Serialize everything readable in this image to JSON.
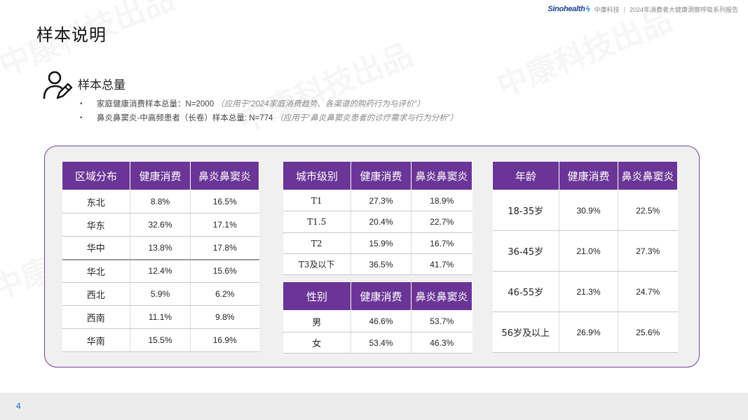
{
  "page": {
    "title": "样本说明",
    "number": "4"
  },
  "brand": {
    "logo": "Sinohealth",
    "company": "中康科技",
    "report": "2024年消费者大健康洞察呼吸系列报告"
  },
  "watermark": "中康科技出品",
  "sample": {
    "heading": "样本总量",
    "items": [
      {
        "text": "家庭健康消费样本总量：N=2000",
        "note": "（应用于“2024家庭消费趋势、各渠道的购药行为与评价”）"
      },
      {
        "text": "鼻炎鼻窦炎-中高频患者（长卷）样本总量: N=774",
        "note": "（应用于“鼻炎鼻窦炎患者的诊疗需求与行为分析”）"
      }
    ]
  },
  "tables": {
    "region": {
      "headers": [
        "区域分布",
        "健康消费",
        "鼻炎鼻窦炎"
      ],
      "rows": [
        [
          "东北",
          "8.8%",
          "16.5%"
        ],
        [
          "华东",
          "32.6%",
          "17.1%"
        ],
        [
          "华中",
          "13.8%",
          "17.8%"
        ],
        [
          "华北",
          "12.4%",
          "15.6%"
        ],
        [
          "西北",
          "5.9%",
          "6.2%"
        ],
        [
          "西南",
          "11.1%",
          "9.8%"
        ],
        [
          "华南",
          "15.5%",
          "16.9%"
        ]
      ]
    },
    "city": {
      "headers": [
        "城市级别",
        "健康消费",
        "鼻炎鼻窦炎"
      ],
      "rows": [
        [
          "T1",
          "27.3%",
          "18.9%"
        ],
        [
          "T1.5",
          "20.4%",
          "22.7%"
        ],
        [
          "T2",
          "15.9%",
          "16.7%"
        ],
        [
          "T3及以下",
          "36.5%",
          "41.7%"
        ]
      ]
    },
    "gender": {
      "headers": [
        "性别",
        "健康消费",
        "鼻炎鼻窦炎"
      ],
      "rows": [
        [
          "男",
          "46.6%",
          "53.7%"
        ],
        [
          "女",
          "53.4%",
          "46.3%"
        ]
      ]
    },
    "age": {
      "headers": [
        "年龄",
        "健康消费",
        "鼻炎鼻窦炎"
      ],
      "rows": [
        [
          "18-35岁",
          "30.9%",
          "22.5%"
        ],
        [
          "36-45岁",
          "21.0%",
          "27.3%"
        ],
        [
          "46-55岁",
          "21.3%",
          "24.7%"
        ],
        [
          "56岁及以上",
          "26.9%",
          "25.6%"
        ]
      ]
    }
  },
  "colors": {
    "header_purple": "#6a3596",
    "panel_border": "#7a3f9c",
    "page_number": "#1a6fc4"
  }
}
